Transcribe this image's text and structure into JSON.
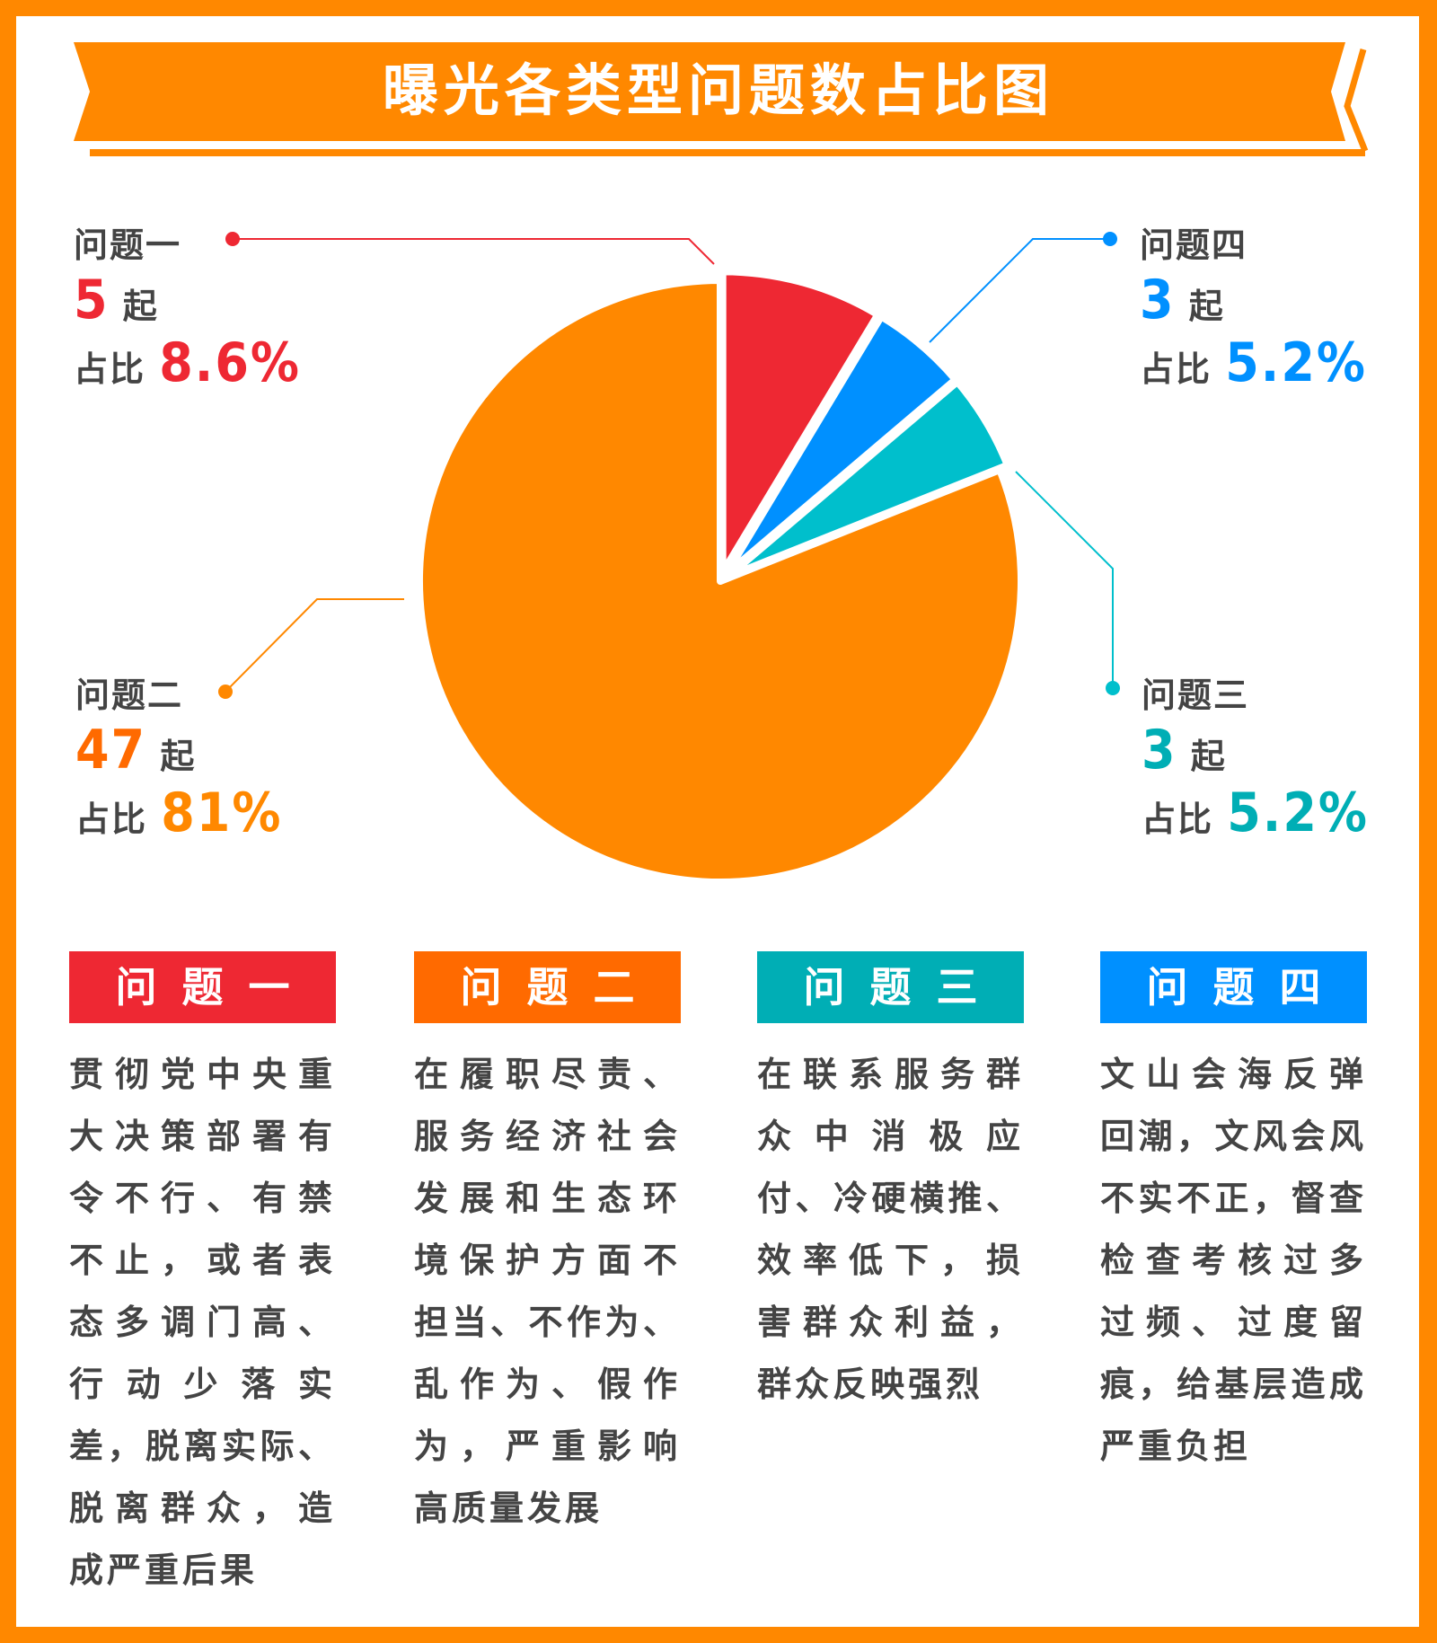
{
  "title": "曝光各类型问题数占比图",
  "colors": {
    "border": "#FF8800",
    "red": "#EE2833",
    "orange": "#FF8800",
    "teal": "#00BFCC",
    "blue": "#0090FF",
    "text": "#444444"
  },
  "chart_data": {
    "type": "pie",
    "title": "曝光各类型问题数占比图",
    "unit": "起",
    "share_label": "占比",
    "slices": [
      {
        "name": "问题一",
        "value": 5,
        "percent_label": "8.6%",
        "color": "#EE2833"
      },
      {
        "name": "问题四",
        "value": 3,
        "percent_label": "5.2%",
        "color": "#0090FF"
      },
      {
        "name": "问题三",
        "value": 3,
        "percent_label": "5.2%",
        "color": "#00BFCC"
      },
      {
        "name": "问题二",
        "value": 47,
        "percent_label": "81%",
        "color": "#FF8800"
      }
    ]
  },
  "sections": [
    {
      "title": "问题一",
      "color": "#EE2833",
      "lines": [
        "贯彻党中央重",
        "大决策部署有",
        "令不行、有禁",
        "不止，或者表",
        "态多调门高、",
        "行动少落实",
        "差，脱离实际、",
        "脱离群众，造",
        "成严重后果"
      ]
    },
    {
      "title": "问题二",
      "color": "#FF6A00",
      "lines": [
        "在履职尽责、",
        "服务经济社会",
        "发展和生态环",
        "境保护方面不",
        "担当、不作为、",
        "乱作为、假作",
        "为，严重影响",
        "高质量发展"
      ]
    },
    {
      "title": "问题三",
      "color": "#00AEB5",
      "lines": [
        "在联系服务群",
        "众中消极应",
        "付、冷硬横推、",
        "效率低下，损",
        "害群众利益，",
        "群众反映强烈"
      ]
    },
    {
      "title": "问题四",
      "color": "#0090FF",
      "lines": [
        "文山会海反弹",
        "回潮，文风会风",
        "不实不正，督查",
        "检查考核过多",
        "过频、过度留",
        "痕，给基层造成",
        "严重负担"
      ]
    }
  ]
}
